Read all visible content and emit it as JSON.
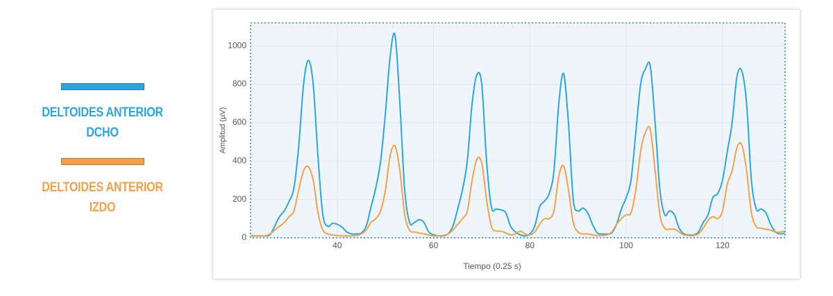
{
  "chart_data": {
    "type": "line",
    "x_label": "Tiempo (0.25 s)",
    "y_label": "Amplitud (µV)",
    "x": [
      22,
      23,
      24,
      25,
      26,
      27,
      28,
      29,
      30,
      31,
      32,
      33,
      34,
      35,
      36,
      37,
      38,
      39,
      40,
      41,
      42,
      43,
      44,
      45,
      46,
      47,
      48,
      49,
      50,
      51,
      52,
      53,
      54,
      55,
      56,
      57,
      58,
      59,
      60,
      61,
      62,
      63,
      64,
      65,
      66,
      67,
      68,
      69,
      70,
      71,
      72,
      73,
      74,
      75,
      76,
      77,
      78,
      79,
      80,
      81,
      82,
      83,
      84,
      85,
      86,
      87,
      88,
      89,
      90,
      91,
      92,
      93,
      94,
      95,
      96,
      97,
      98,
      99,
      100,
      101,
      102,
      103,
      104,
      105,
      106,
      107,
      108,
      109,
      110,
      111,
      112,
      113,
      114,
      115,
      116,
      117,
      118,
      119,
      120,
      121,
      122,
      123,
      124,
      125,
      126,
      127,
      128,
      129,
      130,
      131,
      132,
      133
    ],
    "series": [
      {
        "name": "DELTOIDES ANTERIOR DCHO",
        "color": "#2ba6de",
        "values": [
          10,
          10,
          10,
          10,
          15,
          60,
          110,
          140,
          190,
          260,
          480,
          800,
          925,
          800,
          420,
          120,
          60,
          75,
          70,
          55,
          30,
          20,
          20,
          25,
          60,
          160,
          260,
          400,
          650,
          950,
          1055,
          700,
          250,
          80,
          80,
          95,
          80,
          30,
          15,
          10,
          10,
          20,
          60,
          150,
          250,
          400,
          700,
          850,
          800,
          400,
          160,
          150,
          145,
          130,
          60,
          30,
          15,
          10,
          20,
          60,
          160,
          190,
          230,
          350,
          700,
          855,
          600,
          200,
          140,
          155,
          130,
          70,
          25,
          20,
          20,
          25,
          70,
          150,
          210,
          300,
          550,
          800,
          880,
          895,
          600,
          250,
          120,
          140,
          120,
          50,
          20,
          15,
          15,
          30,
          80,
          120,
          210,
          230,
          300,
          450,
          600,
          840,
          870,
          700,
          300,
          150,
          150,
          130,
          70,
          30,
          20,
          25
        ]
      },
      {
        "name": "DELTOIDES ANTERIOR IZDO",
        "color": "#f6a04a",
        "values": [
          10,
          10,
          10,
          10,
          20,
          40,
          60,
          80,
          110,
          140,
          250,
          350,
          370,
          300,
          130,
          40,
          20,
          15,
          12,
          10,
          10,
          10,
          12,
          20,
          40,
          80,
          100,
          140,
          250,
          430,
          478,
          350,
          120,
          40,
          30,
          25,
          20,
          15,
          10,
          10,
          12,
          20,
          40,
          70,
          100,
          140,
          300,
          410,
          390,
          200,
          60,
          35,
          35,
          25,
          15,
          20,
          35,
          20,
          15,
          30,
          70,
          100,
          100,
          140,
          320,
          375,
          250,
          80,
          30,
          20,
          20,
          15,
          12,
          12,
          15,
          30,
          70,
          100,
          120,
          130,
          250,
          450,
          550,
          565,
          350,
          120,
          50,
          45,
          45,
          30,
          15,
          12,
          12,
          20,
          50,
          90,
          110,
          100,
          140,
          280,
          350,
          470,
          485,
          350,
          130,
          60,
          50,
          45,
          40,
          30,
          30,
          35
        ]
      }
    ],
    "xlim": [
      22,
      133
    ],
    "xticks": [
      40,
      60,
      80,
      100,
      120
    ],
    "ylim": [
      0,
      1120
    ],
    "yticks": [
      0,
      200,
      400,
      600,
      800,
      1000
    ],
    "grid": true,
    "legend": "left"
  }
}
